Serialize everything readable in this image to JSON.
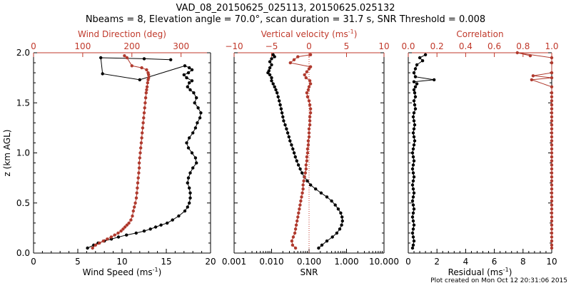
{
  "title_line1": "VAD_08_20150625_025113, 20150625.025132",
  "title_line2": "Nbeams = 8, Elevation angle = 70.0°, scan duration = 31.7 s, SNR Threshold = 0.008",
  "footer": "Plot created on Mon Oct 12 20:31:06 2015",
  "colors": {
    "black": "#000000",
    "red": "#b03a2e",
    "axis_red": "#c0392b"
  },
  "chart_data": [
    {
      "type": "line",
      "panel": "wind",
      "ylabel": "z (km AGL)",
      "ylim": [
        0,
        2.0
      ],
      "yticks": [
        "0.0",
        "0.5",
        "1.0",
        "1.5",
        "2.0"
      ],
      "bottom_axis": {
        "label": "Wind Speed (ms",
        "unit_sup": "-1",
        "unit_close": ")",
        "lim": [
          0,
          20
        ],
        "ticks": [
          "0",
          "5",
          "10",
          "15",
          "20"
        ]
      },
      "top_axis": {
        "label": "Wind Direction (deg)",
        "lim": [
          0,
          360
        ],
        "ticks": [
          "0",
          "100",
          "200",
          "300"
        ]
      },
      "series": [
        {
          "axis": "bottom",
          "x": [
            6.1,
            6.8,
            7.3,
            8.0,
            8.8,
            9.6,
            10.5,
            11.6,
            12.5,
            13.2,
            13.8,
            14.4,
            15.1,
            15.7,
            16.4,
            17.1,
            17.4,
            17.6,
            17.7,
            17.7,
            17.6,
            17.4,
            17.5,
            17.7,
            18.0,
            18.4,
            18.3,
            17.9,
            17.5,
            17.3,
            17.6,
            18.0,
            18.3,
            18.5,
            18.8,
            18.9,
            18.6,
            18.2,
            18.4,
            18.1,
            17.7,
            17.4,
            17.6,
            17.9,
            17.3,
            17.0,
            17.5,
            17.9,
            17.6,
            17.1,
            12.0,
            7.8,
            7.6,
            12.5,
            15.5
          ],
          "y": [
            0.05,
            0.08,
            0.1,
            0.12,
            0.14,
            0.16,
            0.18,
            0.2,
            0.22,
            0.24,
            0.26,
            0.28,
            0.3,
            0.33,
            0.37,
            0.42,
            0.46,
            0.5,
            0.55,
            0.6,
            0.65,
            0.7,
            0.75,
            0.8,
            0.85,
            0.9,
            0.95,
            1.0,
            1.05,
            1.1,
            1.15,
            1.2,
            1.25,
            1.3,
            1.35,
            1.4,
            1.45,
            1.5,
            1.55,
            1.6,
            1.63,
            1.66,
            1.7,
            1.72,
            1.75,
            1.78,
            1.8,
            1.83,
            1.85,
            1.87,
            1.73,
            1.79,
            1.95,
            1.94,
            1.93
          ]
        },
        {
          "axis": "top",
          "x": [
            120,
            126,
            134,
            142,
            150,
            158,
            165,
            172,
            178,
            182,
            186,
            190,
            194,
            198,
            201,
            203,
            205,
            207,
            209,
            210,
            211,
            212,
            213,
            214,
            215,
            215,
            216,
            217,
            218,
            219,
            220,
            221,
            222,
            223,
            224,
            225,
            226,
            227,
            228,
            229,
            230,
            231,
            232,
            233,
            234,
            234,
            233,
            230,
            220,
            200,
            190,
            185
          ],
          "y": [
            0.05,
            0.08,
            0.1,
            0.12,
            0.14,
            0.16,
            0.18,
            0.2,
            0.22,
            0.24,
            0.26,
            0.28,
            0.3,
            0.33,
            0.37,
            0.42,
            0.46,
            0.5,
            0.55,
            0.6,
            0.65,
            0.7,
            0.75,
            0.8,
            0.85,
            0.9,
            0.95,
            1.0,
            1.05,
            1.1,
            1.15,
            1.2,
            1.25,
            1.3,
            1.35,
            1.4,
            1.45,
            1.5,
            1.55,
            1.6,
            1.63,
            1.66,
            1.7,
            1.73,
            1.75,
            1.78,
            1.8,
            1.83,
            1.85,
            1.87,
            1.95,
            1.97
          ]
        }
      ]
    },
    {
      "type": "line",
      "panel": "snr",
      "ylim": [
        0,
        2.0
      ],
      "bottom_axis": {
        "label": "SNR",
        "scale": "log",
        "lim": [
          0.001,
          10
        ],
        "ticks": [
          "0.001",
          "0.010",
          "0.100",
          "1.000",
          "10.000"
        ]
      },
      "top_axis": {
        "label": "Vertical velocity (ms",
        "unit_sup": "-1",
        "unit_close": ")",
        "lim": [
          -10,
          10
        ],
        "ticks": [
          "−10",
          "−5",
          "0",
          "5",
          "10"
        ]
      },
      "reference_line": {
        "axis": "top",
        "x": 0
      },
      "series": [
        {
          "axis": "bottom",
          "x": [
            0.18,
            0.22,
            0.3,
            0.42,
            0.55,
            0.66,
            0.74,
            0.78,
            0.76,
            0.7,
            0.6,
            0.5,
            0.4,
            0.3,
            0.21,
            0.15,
            0.11,
            0.09,
            0.075,
            0.065,
            0.058,
            0.052,
            0.047,
            0.043,
            0.04,
            0.037,
            0.034,
            0.031,
            0.029,
            0.027,
            0.025,
            0.023,
            0.021,
            0.02,
            0.019,
            0.018,
            0.017,
            0.016,
            0.015,
            0.014,
            0.013,
            0.012,
            0.011,
            0.01,
            0.01,
            0.009,
            0.008,
            0.0085,
            0.009,
            0.01,
            0.009,
            0.01,
            0.012,
            0.011
          ],
          "y": [
            0.05,
            0.08,
            0.12,
            0.16,
            0.2,
            0.24,
            0.28,
            0.32,
            0.36,
            0.4,
            0.44,
            0.48,
            0.52,
            0.56,
            0.6,
            0.64,
            0.68,
            0.72,
            0.76,
            0.8,
            0.84,
            0.88,
            0.92,
            0.96,
            1.0,
            1.04,
            1.08,
            1.12,
            1.16,
            1.2,
            1.24,
            1.28,
            1.32,
            1.36,
            1.4,
            1.44,
            1.48,
            1.52,
            1.56,
            1.6,
            1.63,
            1.66,
            1.69,
            1.72,
            1.75,
            1.78,
            1.8,
            1.82,
            1.85,
            1.88,
            1.91,
            1.94,
            1.96,
            1.98
          ]
        },
        {
          "axis": "top",
          "x": [
            -1.8,
            -2.2,
            -2.3,
            -2.1,
            -1.9,
            -1.8,
            -1.7,
            -1.6,
            -1.5,
            -1.4,
            -1.3,
            -1.2,
            -1.1,
            -1.0,
            -0.9,
            -0.8,
            -0.8,
            -0.7,
            -0.6,
            -0.5,
            -0.4,
            -0.4,
            -0.3,
            -0.3,
            -0.2,
            -0.2,
            -0.1,
            -0.1,
            0.0,
            0.0,
            0.0,
            0.1,
            0.1,
            0.1,
            0.2,
            0.2,
            0.1,
            0.0,
            -0.2,
            -0.3,
            -0.1,
            0.0,
            0.2,
            0.1,
            -0.4,
            -0.6,
            -0.3,
            0.0,
            0.2,
            -2.5,
            -2.0,
            -1.5,
            0.2
          ],
          "y": [
            0.05,
            0.08,
            0.12,
            0.16,
            0.2,
            0.24,
            0.28,
            0.32,
            0.36,
            0.4,
            0.44,
            0.48,
            0.52,
            0.56,
            0.6,
            0.64,
            0.68,
            0.72,
            0.76,
            0.8,
            0.84,
            0.88,
            0.92,
            0.96,
            1.0,
            1.04,
            1.08,
            1.12,
            1.16,
            1.2,
            1.24,
            1.28,
            1.32,
            1.36,
            1.4,
            1.44,
            1.48,
            1.52,
            1.56,
            1.6,
            1.63,
            1.66,
            1.69,
            1.72,
            1.75,
            1.78,
            1.81,
            1.84,
            1.86,
            1.9,
            1.93,
            1.96,
            1.98
          ]
        }
      ]
    },
    {
      "type": "line",
      "panel": "residual",
      "ylim": [
        0,
        2.0
      ],
      "bottom_axis": {
        "label": "Residual (ms",
        "unit_sup": "-1",
        "unit_close": ")",
        "lim": [
          0,
          10
        ],
        "ticks": [
          "0",
          "2",
          "4",
          "6",
          "8",
          "10"
        ]
      },
      "top_axis": {
        "label": "Correlation",
        "lim": [
          0,
          1.0
        ],
        "ticks": [
          "0.0",
          "0.2",
          "0.4",
          "0.6",
          "0.8",
          "1.0"
        ]
      },
      "series": [
        {
          "axis": "bottom",
          "x": [
            0.3,
            0.35,
            0.4,
            0.35,
            0.3,
            0.35,
            0.4,
            0.35,
            0.3,
            0.35,
            0.4,
            0.35,
            0.3,
            0.35,
            0.4,
            0.35,
            0.3,
            0.35,
            0.4,
            0.35,
            0.3,
            0.35,
            0.4,
            0.35,
            0.3,
            0.35,
            0.4,
            0.45,
            0.4,
            0.35,
            0.4,
            0.45,
            0.4,
            0.35,
            0.4,
            0.5,
            0.45,
            0.4,
            0.5,
            0.45,
            0.4,
            0.5,
            0.6,
            0.4,
            1.8,
            0.5,
            0.4,
            0.5,
            0.6,
            1.0,
            0.8,
            1.2
          ],
          "y": [
            0.05,
            0.08,
            0.12,
            0.16,
            0.2,
            0.24,
            0.28,
            0.32,
            0.36,
            0.4,
            0.44,
            0.48,
            0.52,
            0.56,
            0.6,
            0.64,
            0.68,
            0.72,
            0.76,
            0.8,
            0.84,
            0.88,
            0.92,
            0.96,
            1.0,
            1.04,
            1.08,
            1.12,
            1.16,
            1.2,
            1.24,
            1.28,
            1.32,
            1.36,
            1.4,
            1.44,
            1.48,
            1.52,
            1.56,
            1.6,
            1.63,
            1.66,
            1.69,
            1.71,
            1.73,
            1.76,
            1.8,
            1.84,
            1.88,
            1.92,
            1.95,
            1.98
          ]
        },
        {
          "axis": "top",
          "x": [
            1.0,
            1.0,
            1.0,
            1.0,
            1.0,
            1.0,
            1.0,
            1.0,
            1.0,
            1.0,
            1.0,
            1.0,
            1.0,
            1.0,
            1.0,
            1.0,
            1.0,
            1.0,
            1.0,
            1.0,
            1.0,
            1.0,
            1.0,
            1.0,
            1.0,
            1.0,
            1.0,
            1.0,
            1.0,
            1.0,
            1.0,
            1.0,
            1.0,
            1.0,
            1.0,
            1.0,
            1.0,
            1.0,
            1.0,
            1.0,
            1.0,
            0.86,
            1.0,
            0.87,
            1.0,
            1.0,
            1.0,
            0.76,
            0.85
          ],
          "y": [
            0.05,
            0.08,
            0.12,
            0.16,
            0.2,
            0.24,
            0.28,
            0.32,
            0.36,
            0.4,
            0.44,
            0.48,
            0.52,
            0.56,
            0.6,
            0.64,
            0.68,
            0.72,
            0.76,
            0.8,
            0.84,
            0.88,
            0.92,
            0.96,
            1.0,
            1.04,
            1.08,
            1.12,
            1.16,
            1.2,
            1.24,
            1.28,
            1.32,
            1.36,
            1.4,
            1.44,
            1.48,
            1.52,
            1.56,
            1.6,
            1.66,
            1.73,
            1.75,
            1.77,
            1.8,
            1.9,
            1.95,
            2.0,
            1.97
          ]
        }
      ]
    }
  ]
}
